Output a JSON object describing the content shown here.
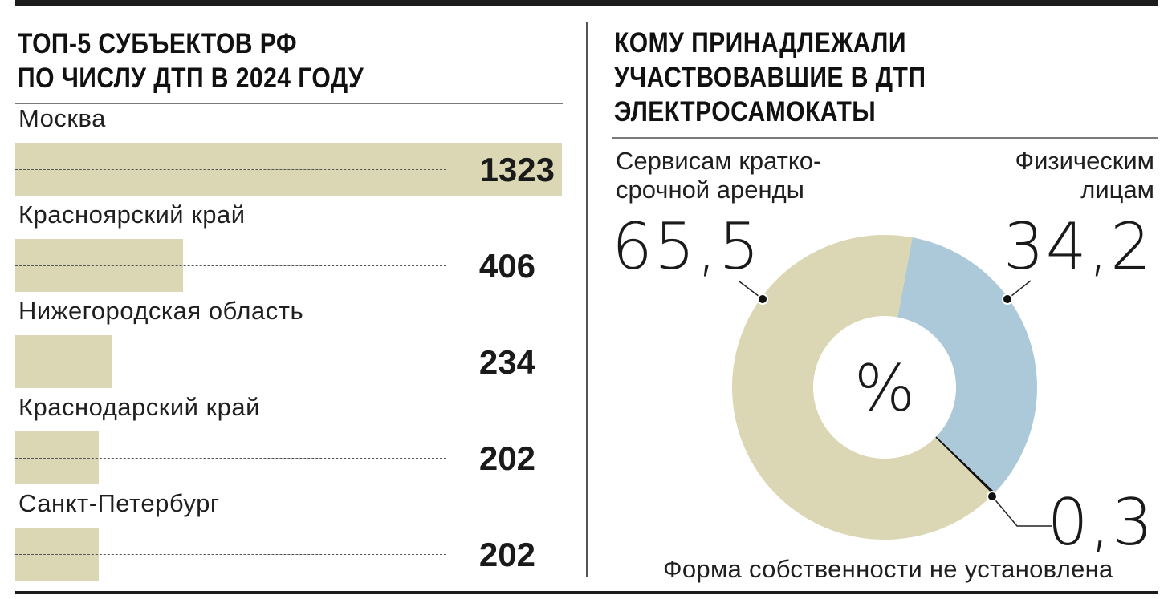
{
  "left_panel": {
    "title_lines": [
      "ТОП-5 СУБЪЕКТОВ РФ",
      "ПО ЧИСЛУ ДТП В 2024 ГОДУ"
    ]
  },
  "right_panel": {
    "title_lines": [
      "КОМУ ПРИНАДЛЕЖАЛИ",
      "УЧАСТВОВАВШИЕ В ДТП",
      "ЭЛЕКТРОСАМОКАТЫ"
    ],
    "center_symbol": "%",
    "segments": [
      {
        "label_lines": [
          "Сервисам кратко-",
          "срочной аренды"
        ],
        "value_text": "65,5"
      },
      {
        "label_lines": [
          "Физическим",
          "лицам"
        ],
        "value_text": "34,2"
      },
      {
        "label_text": "Форма собственности не установлена",
        "value_text": "0,3"
      }
    ]
  },
  "colors": {
    "bar": "#dbd6b3",
    "rental": "#dbd6b3",
    "private": "#abc9d8",
    "unknown": "#111111",
    "rule": "#1c1c1c"
  },
  "chart_data": [
    {
      "type": "bar",
      "orientation": "horizontal",
      "title": "ТОП-5 субъектов РФ по числу ДТП в 2024 году",
      "categories": [
        "Москва",
        "Красноярский край",
        "Нижегородская область",
        "Краснодарский край",
        "Санкт-Петербург"
      ],
      "values": [
        1323,
        406,
        234,
        202,
        202
      ],
      "value_labels": [
        "1323",
        "406",
        "234",
        "202",
        "202"
      ],
      "xlabel": "",
      "ylabel": "",
      "grid": false,
      "legend": null
    },
    {
      "type": "pie",
      "donut": true,
      "title": "Кому принадлежали участвовавшие в ДТП электросамокаты",
      "unit": "%",
      "categories": [
        "Сервисам краткосрочной аренды",
        "Физическим лицам",
        "Форма собственности не установлена"
      ],
      "values": [
        65.5,
        34.2,
        0.3
      ],
      "value_labels": [
        "65,5",
        "34,2",
        "0,3"
      ],
      "colors": [
        "#dbd6b3",
        "#abc9d8",
        "#111111"
      ]
    }
  ]
}
